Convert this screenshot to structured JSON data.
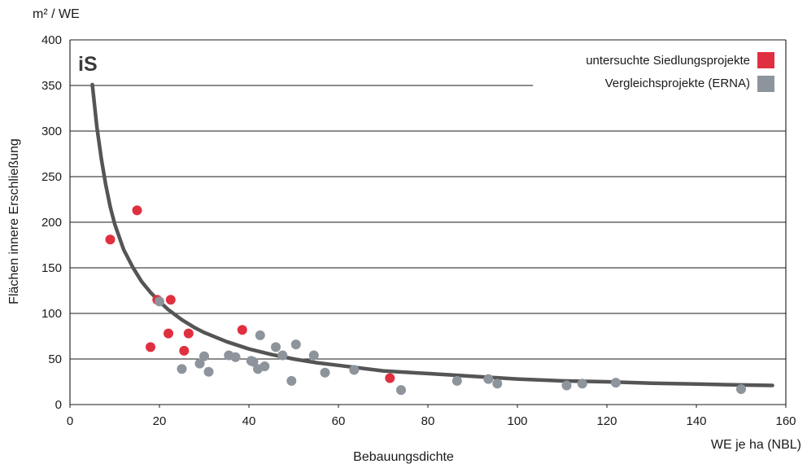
{
  "chart_data": {
    "type": "scatter",
    "title": "",
    "ylabel": "Flächen innere Erschließung",
    "yunit": "m² / WE",
    "xlabel": "Bebauungsdichte",
    "xunit": "WE je ha (NBL)",
    "xlim": [
      0,
      160
    ],
    "ylim": [
      0,
      400
    ],
    "xticks": [
      0,
      20,
      40,
      60,
      80,
      100,
      120,
      140,
      160
    ],
    "yticks": [
      0,
      50,
      100,
      150,
      200,
      250,
      300,
      350,
      400
    ],
    "grid": "horizontal",
    "legend_position": "top-right",
    "logo": "iS",
    "series": [
      {
        "name": "untersuchte Siedlungsprojekte",
        "color": "#e0303f",
        "points": [
          [
            9,
            181
          ],
          [
            15,
            213
          ],
          [
            18,
            63
          ],
          [
            19.5,
            115
          ],
          [
            22,
            78
          ],
          [
            22.5,
            115
          ],
          [
            25.5,
            59
          ],
          [
            26.5,
            78
          ],
          [
            38.5,
            82
          ],
          [
            71.5,
            29
          ]
        ]
      },
      {
        "name": "Vergleichsprojekte (ERNA)",
        "color": "#8d949c",
        "points": [
          [
            20,
            113
          ],
          [
            25,
            39
          ],
          [
            29,
            45
          ],
          [
            30,
            53
          ],
          [
            31,
            36
          ],
          [
            35.5,
            54
          ],
          [
            37,
            52
          ],
          [
            40.5,
            48
          ],
          [
            41,
            47
          ],
          [
            42,
            39
          ],
          [
            42.5,
            76
          ],
          [
            43.5,
            42
          ],
          [
            46,
            63
          ],
          [
            47.5,
            54
          ],
          [
            49.5,
            26
          ],
          [
            50.5,
            66
          ],
          [
            54.5,
            54
          ],
          [
            57,
            35
          ],
          [
            63.5,
            38
          ],
          [
            74,
            16
          ],
          [
            86.5,
            26
          ],
          [
            93.5,
            28
          ],
          [
            95.5,
            23
          ],
          [
            111,
            21
          ],
          [
            114.5,
            23
          ],
          [
            122,
            24
          ],
          [
            150,
            17
          ]
        ]
      }
    ],
    "trend_curve": {
      "color": "#555555",
      "points": [
        [
          5,
          351
        ],
        [
          6,
          305
        ],
        [
          7,
          270
        ],
        [
          8,
          241
        ],
        [
          9,
          217
        ],
        [
          10,
          198
        ],
        [
          12,
          170
        ],
        [
          14,
          151
        ],
        [
          16,
          135
        ],
        [
          18,
          123
        ],
        [
          20,
          113
        ],
        [
          22,
          104
        ],
        [
          25,
          93
        ],
        [
          28,
          84
        ],
        [
          30,
          79
        ],
        [
          35,
          69
        ],
        [
          40,
          61
        ],
        [
          45,
          55
        ],
        [
          50,
          50
        ],
        [
          55,
          46
        ],
        [
          60,
          43
        ],
        [
          70,
          37
        ],
        [
          80,
          34
        ],
        [
          90,
          31
        ],
        [
          100,
          28
        ],
        [
          110,
          26
        ],
        [
          120,
          25
        ],
        [
          130,
          23.5
        ],
        [
          140,
          22.5
        ],
        [
          150,
          21.5
        ],
        [
          157,
          21
        ]
      ]
    }
  }
}
